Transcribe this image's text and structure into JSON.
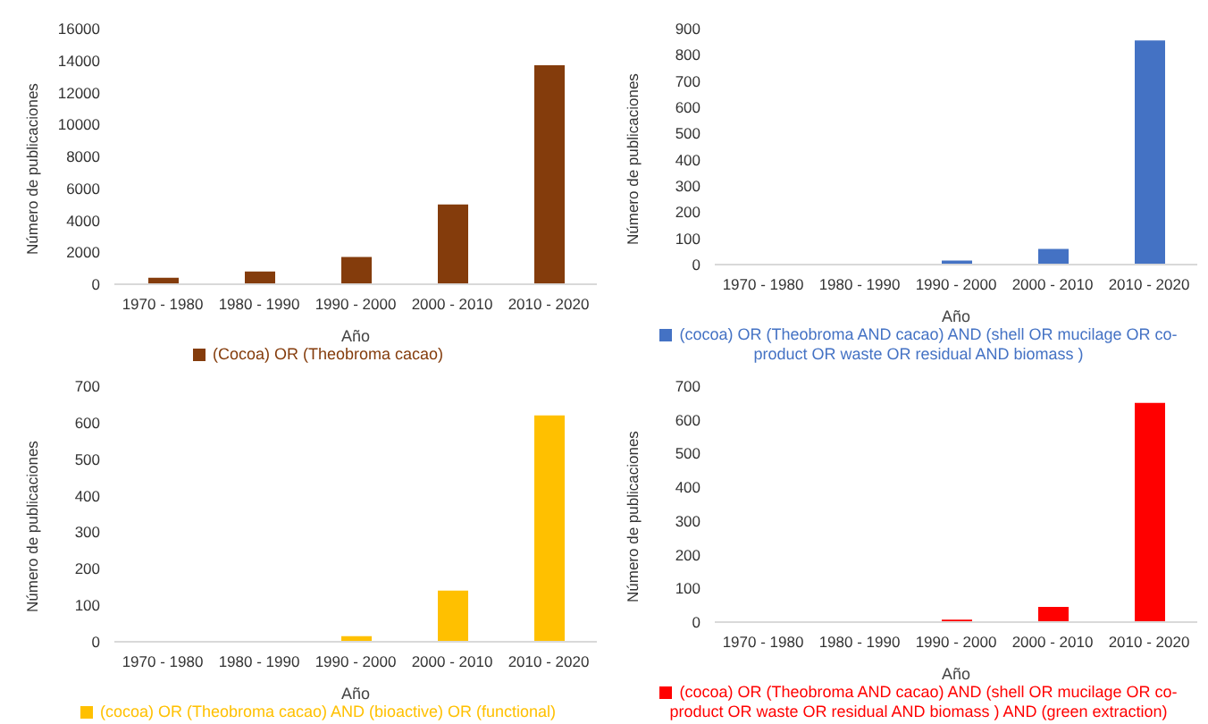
{
  "chart_data": [
    {
      "type": "bar",
      "categories": [
        "1970 - 1980",
        "1980 - 1990",
        "1990 - 2000",
        "2000 - 2010",
        "2010 - 2020"
      ],
      "xlabel": "Año",
      "ylabel": "Número de publicaciones",
      "ylim": [
        0,
        16000
      ],
      "yticks": [
        0,
        2000,
        4000,
        6000,
        8000,
        10000,
        12000,
        14000,
        16000
      ],
      "grid": false,
      "legend": "bottom",
      "series": [
        {
          "name": "(Cocoa) OR (Theobroma cacao)",
          "color": "#843c0c",
          "values": [
            400,
            800,
            1700,
            5000,
            13700
          ]
        }
      ]
    },
    {
      "type": "bar",
      "categories": [
        "1970 - 1980",
        "1980 - 1990",
        "1990 - 2000",
        "2000 - 2010",
        "2010 - 2020"
      ],
      "xlabel": "Año",
      "ylabel": "Número de publicaciones",
      "ylim": [
        0,
        900
      ],
      "yticks": [
        0,
        100,
        200,
        300,
        400,
        500,
        600,
        700,
        800,
        900
      ],
      "grid": false,
      "legend": "bottom",
      "series": [
        {
          "name": "(cocoa)  OR  (Theobroma AND cacao)  AND  (shell OR mucilage OR co-product OR waste OR residual AND biomass )",
          "color": "#4472c4",
          "values": [
            0,
            0,
            15,
            60,
            855
          ]
        }
      ]
    },
    {
      "type": "bar",
      "categories": [
        "1970 - 1980",
        "1980 - 1990",
        "1990 - 2000",
        "2000 - 2010",
        "2010 - 2020"
      ],
      "xlabel": "Año",
      "ylabel": "Número de publicaciones",
      "ylim": [
        0,
        700
      ],
      "yticks": [
        0,
        100,
        200,
        300,
        400,
        500,
        600,
        700
      ],
      "grid": false,
      "legend": "bottom",
      "series": [
        {
          "name": "(cocoa) OR (Theobroma cacao) AND (bioactive) OR (functional)",
          "color": "#ffc000",
          "values": [
            0,
            0,
            15,
            140,
            620
          ]
        }
      ]
    },
    {
      "type": "bar",
      "categories": [
        "1970 - 1980",
        "1980 - 1990",
        "1990 - 2000",
        "2000 - 2010",
        "2010 - 2020"
      ],
      "xlabel": "Año",
      "ylabel": "Número de publicaciones",
      "ylim": [
        0,
        700
      ],
      "yticks": [
        0,
        100,
        200,
        300,
        400,
        500,
        600,
        700
      ],
      "grid": false,
      "legend": "bottom",
      "series": [
        {
          "name": "(cocoa)  OR  (Theobroma AND cacao)  AND  (shell OR mucilage OR co-product OR waste OR residual AND biomass ) AND (green extraction)",
          "color": "#ff0000",
          "values": [
            0,
            0,
            7,
            45,
            650
          ]
        }
      ]
    }
  ]
}
